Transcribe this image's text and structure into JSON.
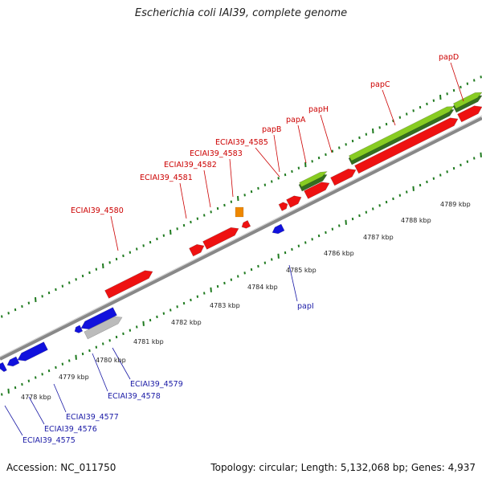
{
  "title": "Escherichia coli IAI39, complete genome",
  "footer": {
    "accession": "Accession: NC_011750",
    "summary": "Topology: circular; Length: 5,132,068 bp; Genes: 4,937"
  },
  "colors": {
    "forward_cds": "#ee1111",
    "reverse_cds": "#1111dd",
    "upper_label": "#cc0000",
    "lower_label": "#1a1aa6",
    "rna": "#ee8800",
    "green_feature": "#88cc22",
    "grey_feature": "#bbbbbb",
    "tick": "#1f7a1f"
  },
  "ruler_labels": [
    "4778 kbp",
    "4779 kbp",
    "4780 kbp",
    "4781 kbp",
    "4782 kbp",
    "4783 kbp",
    "4784 kbp",
    "4785 kbp",
    "4786 kbp",
    "4787 kbp",
    "4788 kbp",
    "4789 kbp"
  ],
  "upper_labels": [
    "ECIAI39_4580",
    "ECIAI39_4581",
    "ECIAI39_4582",
    "ECIAI39_4583",
    "ECIAI39_4585",
    "papB",
    "papA",
    "papH",
    "papC",
    "papD"
  ],
  "lower_labels": [
    "ECIAI39_4575",
    "ECIAI39_4576",
    "ECIAI39_4577",
    "ECIAI39_4578",
    "ECIAI39_4579",
    "papI"
  ]
}
